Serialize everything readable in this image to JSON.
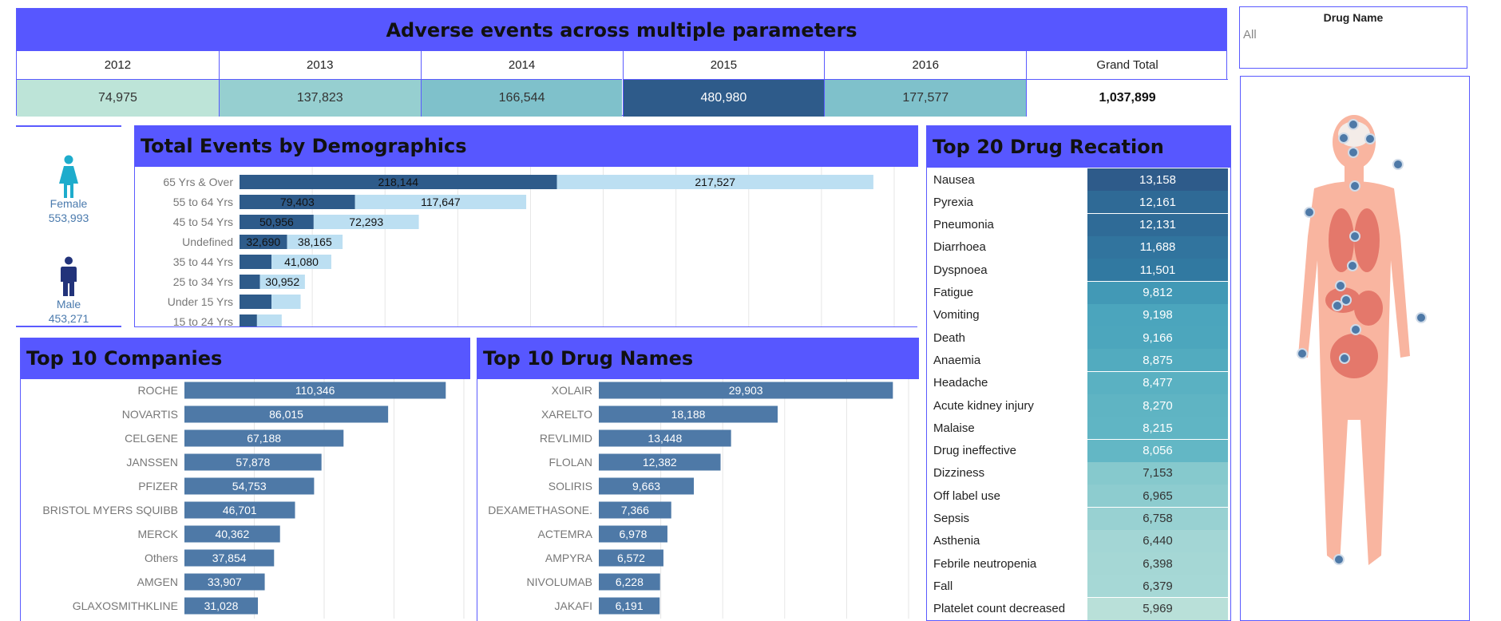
{
  "year_table": {
    "title": "Adverse events across multiple parameters",
    "headers": [
      "2012",
      "2013",
      "2014",
      "2015",
      "2016",
      "Grand Total"
    ],
    "values": [
      "74,975",
      "137,823",
      "166,544",
      "480,980",
      "177,577",
      "1,037,899"
    ],
    "colors": [
      "#bde4d8",
      "#96cfd0",
      "#7fc1cb",
      "#2e5b8a",
      "#7fc1cb",
      "#ffffff"
    ]
  },
  "filter": {
    "title": "Drug Name",
    "value": "All"
  },
  "gender": {
    "female_label": "Female",
    "female_value": "553,993",
    "male_label": "Male",
    "male_value": "453,271"
  },
  "chart_data": [
    {
      "type": "bar",
      "title": "Total Events by Demographics",
      "categories": [
        "65 Yrs & Over",
        "55 to 64 Yrs",
        "45 to 54 Yrs",
        "Undefined",
        "35 to 44 Yrs",
        "25 to 34 Yrs",
        "Under 15 Yrs",
        "15 to 24 Yrs"
      ],
      "series": [
        {
          "values": [
            218144,
            79403,
            50956,
            32690,
            22000,
            14000,
            22000,
            12000
          ],
          "labels": [
            "218,144",
            "79,403",
            "50,956",
            "32,690",
            "",
            "",
            "",
            ""
          ],
          "color": "#2e5b8a"
        },
        {
          "values": [
            217527,
            117647,
            72293,
            38165,
            41080,
            30952,
            20000,
            17000
          ],
          "labels": [
            "217,527",
            "117,647",
            "72,293",
            "38,165",
            "41,080",
            "30,952",
            "",
            ""
          ],
          "color": "#bcdff2"
        }
      ],
      "stacked": true,
      "xlim": [
        0,
        450000
      ],
      "grid": true
    },
    {
      "type": "bar",
      "title": "Top 10 Companies",
      "categories": [
        "ROCHE",
        "NOVARTIS",
        "CELGENE",
        "JANSSEN",
        "PFIZER",
        "BRISTOL MYERS SQUIBB",
        "MERCK",
        "Others",
        "AMGEN",
        "GLAXOSMITHKLINE"
      ],
      "values": [
        110346,
        86015,
        67188,
        57878,
        54753,
        46701,
        40362,
        37854,
        33907,
        31028
      ],
      "labels": [
        "110,346",
        "86,015",
        "67,188",
        "57,878",
        "54,753",
        "46,701",
        "40,362",
        "37,854",
        "33,907",
        "31,028"
      ],
      "color": "#4e79a7",
      "xlim": [
        0,
        118000
      ],
      "grid": true
    },
    {
      "type": "bar",
      "title": "Top 10 Drug Names",
      "categories": [
        "XOLAIR",
        "XARELTO",
        "REVLIMID",
        "FLOLAN",
        "SOLIRIS",
        "DEXAMETHASONE.",
        "ACTEMRA",
        "AMPYRA",
        "NIVOLUMAB",
        "JAKAFI"
      ],
      "values": [
        29903,
        18188,
        13448,
        12382,
        9663,
        7366,
        6978,
        6572,
        6228,
        6191
      ],
      "labels": [
        "29,903",
        "18,188",
        "13,448",
        "12,382",
        "9,663",
        "7,366",
        "6,978",
        "6,572",
        "6,228",
        "6,191"
      ],
      "color": "#4e79a7",
      "xlim": [
        0,
        31500
      ],
      "grid": true
    },
    {
      "type": "table",
      "title": "Top 20 Drug Recation",
      "rows": [
        {
          "name": "Nausea",
          "value": "13,158",
          "color": "#2e5b8a"
        },
        {
          "name": "Pyrexia",
          "value": "12,161",
          "color": "#2f6a96"
        },
        {
          "name": "Pneumonia",
          "value": "12,131",
          "color": "#2f6b97"
        },
        {
          "name": "Diarrhoea",
          "value": "11,688",
          "color": "#31749e"
        },
        {
          "name": "Dyspnoea",
          "value": "11,501",
          "color": "#3179a1"
        },
        {
          "name": "Fatigue",
          "value": "9,812",
          "color": "#4299b6"
        },
        {
          "name": "Vomiting",
          "value": "9,198",
          "color": "#4ba5bd"
        },
        {
          "name": "Death",
          "value": "9,166",
          "color": "#4ca6bd"
        },
        {
          "name": "Anaemia",
          "value": "8,875",
          "color": "#52abbf"
        },
        {
          "name": "Headache",
          "value": "8,477",
          "color": "#5ab1c2"
        },
        {
          "name": "Acute kidney injury",
          "value": "8,270",
          "color": "#5fb4c3"
        },
        {
          "name": "Malaise",
          "value": "8,215",
          "color": "#60b5c4"
        },
        {
          "name": "Drug ineffective",
          "value": "8,056",
          "color": "#63b7c5"
        },
        {
          "name": "Dizziness",
          "value": "7,153",
          "color": "#86c9cd"
        },
        {
          "name": "Off label use",
          "value": "6,965",
          "color": "#8dcccf"
        },
        {
          "name": "Sepsis",
          "value": "6,758",
          "color": "#98d1d2"
        },
        {
          "name": "Asthenia",
          "value": "6,440",
          "color": "#a3d6d5"
        },
        {
          "name": "Febrile neutropenia",
          "value": "6,398",
          "color": "#a5d7d5"
        },
        {
          "name": "Fall",
          "value": "6,379",
          "color": "#a6d8d6"
        },
        {
          "name": "Platelet count decreased",
          "value": "5,969",
          "color": "#b9e0d9"
        }
      ]
    }
  ]
}
